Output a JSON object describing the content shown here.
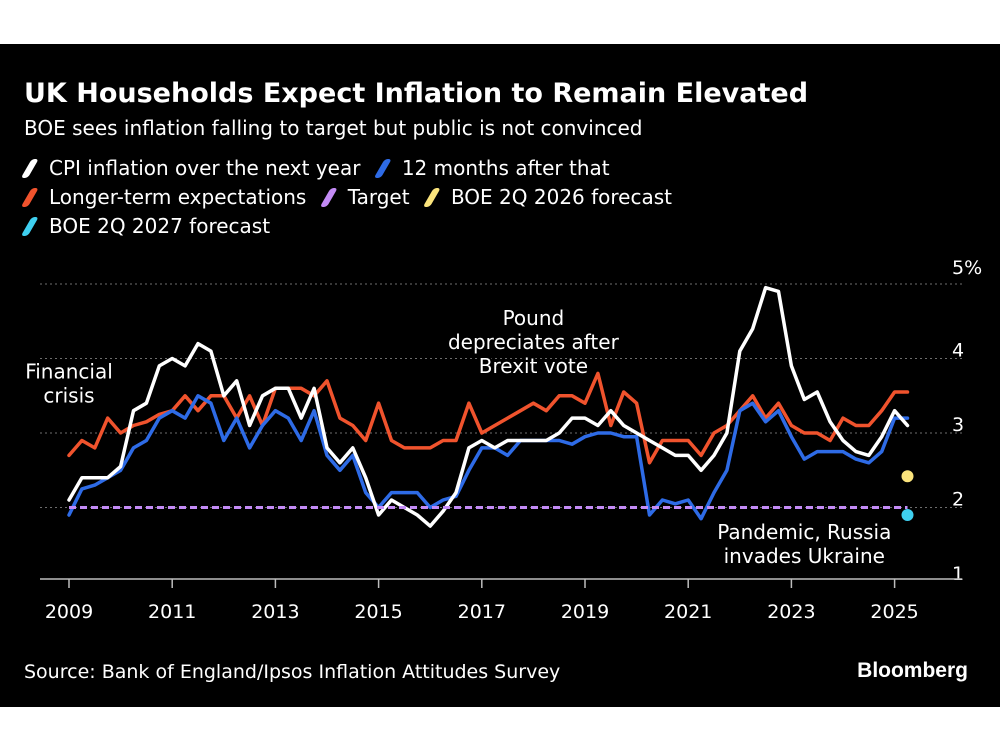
{
  "title": "UK Households Expect Inflation to Remain Elevated",
  "subtitle": "BOE sees inflation falling to target but public is not convinced",
  "legend": [
    [
      {
        "label": "CPI inflation over the next year",
        "color": "#ffffff"
      },
      {
        "label": "12 months after that",
        "color": "#2e6be6"
      }
    ],
    [
      {
        "label": "Longer-term expectations",
        "color": "#f0532d"
      },
      {
        "label": "Target",
        "color": "#c38bf5"
      },
      {
        "label": "BOE 2Q 2026 forecast",
        "color": "#fbe47c"
      }
    ],
    [
      {
        "label": "BOE 2Q 2027 forecast",
        "color": "#3fd0f0"
      }
    ]
  ],
  "source": "Source: Bank of England/Ipsos Inflation Attitudes Survey",
  "brand": "Bloomberg",
  "chart_data": {
    "type": "line",
    "x_range": [
      2008.8,
      2026.4
    ],
    "ylim": [
      1,
      5
    ],
    "y_ticks": [
      {
        "value": 5,
        "label": "5%"
      },
      {
        "value": 4,
        "label": "4"
      },
      {
        "value": 3,
        "label": "3"
      },
      {
        "value": 2,
        "label": "2"
      },
      {
        "value": 1,
        "label": "1"
      }
    ],
    "x_ticks": [
      2009,
      2011,
      2013,
      2015,
      2017,
      2019,
      2021,
      2023,
      2025
    ],
    "grid": "horizontal-dotted",
    "series": [
      {
        "name": "Longer-term expectations",
        "color": "#f0532d",
        "points": [
          [
            2009.0,
            2.7
          ],
          [
            2009.25,
            2.9
          ],
          [
            2009.5,
            2.8
          ],
          [
            2009.75,
            3.2
          ],
          [
            2010.0,
            3.0
          ],
          [
            2010.25,
            3.1
          ],
          [
            2010.5,
            3.15
          ],
          [
            2010.75,
            3.25
          ],
          [
            2011.0,
            3.3
          ],
          [
            2011.25,
            3.5
          ],
          [
            2011.5,
            3.3
          ],
          [
            2011.75,
            3.5
          ],
          [
            2012.0,
            3.5
          ],
          [
            2012.25,
            3.2
          ],
          [
            2012.5,
            3.5
          ],
          [
            2012.75,
            3.1
          ],
          [
            2013.0,
            3.6
          ],
          [
            2013.25,
            3.6
          ],
          [
            2013.5,
            3.6
          ],
          [
            2013.75,
            3.5
          ],
          [
            2014.0,
            3.7
          ],
          [
            2014.25,
            3.2
          ],
          [
            2014.5,
            3.1
          ],
          [
            2014.75,
            2.9
          ],
          [
            2015.0,
            3.4
          ],
          [
            2015.25,
            2.9
          ],
          [
            2015.5,
            2.8
          ],
          [
            2015.75,
            2.8
          ],
          [
            2016.0,
            2.8
          ],
          [
            2016.25,
            2.9
          ],
          [
            2016.5,
            2.9
          ],
          [
            2016.75,
            3.4
          ],
          [
            2017.0,
            3.0
          ],
          [
            2017.5,
            3.2
          ],
          [
            2017.75,
            3.3
          ],
          [
            2018.0,
            3.4
          ],
          [
            2018.25,
            3.3
          ],
          [
            2018.5,
            3.5
          ],
          [
            2018.75,
            3.5
          ],
          [
            2019.0,
            3.4
          ],
          [
            2019.25,
            3.8
          ],
          [
            2019.5,
            3.1
          ],
          [
            2019.75,
            3.55
          ],
          [
            2020.0,
            3.4
          ],
          [
            2020.25,
            2.6
          ],
          [
            2020.5,
            2.9
          ],
          [
            2020.75,
            2.9
          ],
          [
            2021.0,
            2.9
          ],
          [
            2021.25,
            2.7
          ],
          [
            2021.5,
            3.0
          ],
          [
            2021.75,
            3.1
          ],
          [
            2022.0,
            3.3
          ],
          [
            2022.25,
            3.5
          ],
          [
            2022.5,
            3.2
          ],
          [
            2022.75,
            3.4
          ],
          [
            2023.0,
            3.1
          ],
          [
            2023.25,
            3.0
          ],
          [
            2023.5,
            3.0
          ],
          [
            2023.75,
            2.9
          ],
          [
            2024.0,
            3.2
          ],
          [
            2024.25,
            3.1
          ],
          [
            2024.5,
            3.1
          ],
          [
            2024.75,
            3.3
          ],
          [
            2025.0,
            3.55
          ],
          [
            2025.25,
            3.55
          ]
        ]
      },
      {
        "name": "12 months after that",
        "color": "#2e6be6",
        "points": [
          [
            2009.0,
            1.9
          ],
          [
            2009.25,
            2.25
          ],
          [
            2009.5,
            2.3
          ],
          [
            2009.75,
            2.4
          ],
          [
            2010.0,
            2.5
          ],
          [
            2010.25,
            2.8
          ],
          [
            2010.5,
            2.9
          ],
          [
            2010.75,
            3.2
          ],
          [
            2011.0,
            3.3
          ],
          [
            2011.25,
            3.2
          ],
          [
            2011.5,
            3.5
          ],
          [
            2011.75,
            3.4
          ],
          [
            2012.0,
            2.9
          ],
          [
            2012.25,
            3.2
          ],
          [
            2012.5,
            2.8
          ],
          [
            2012.75,
            3.1
          ],
          [
            2013.0,
            3.3
          ],
          [
            2013.25,
            3.2
          ],
          [
            2013.5,
            2.9
          ],
          [
            2013.75,
            3.3
          ],
          [
            2014.0,
            2.7
          ],
          [
            2014.25,
            2.5
          ],
          [
            2014.5,
            2.7
          ],
          [
            2014.75,
            2.2
          ],
          [
            2015.0,
            2.0
          ],
          [
            2015.25,
            2.2
          ],
          [
            2015.5,
            2.2
          ],
          [
            2015.75,
            2.2
          ],
          [
            2016.0,
            2.0
          ],
          [
            2016.25,
            2.1
          ],
          [
            2016.5,
            2.15
          ],
          [
            2016.75,
            2.5
          ],
          [
            2017.0,
            2.8
          ],
          [
            2017.25,
            2.8
          ],
          [
            2017.5,
            2.7
          ],
          [
            2017.75,
            2.9
          ],
          [
            2018.0,
            2.9
          ],
          [
            2018.25,
            2.9
          ],
          [
            2018.5,
            2.9
          ],
          [
            2018.75,
            2.85
          ],
          [
            2019.0,
            2.95
          ],
          [
            2019.25,
            3.0
          ],
          [
            2019.5,
            3.0
          ],
          [
            2019.75,
            2.95
          ],
          [
            2020.0,
            2.95
          ],
          [
            2020.25,
            1.9
          ],
          [
            2020.5,
            2.1
          ],
          [
            2020.75,
            2.05
          ],
          [
            2021.0,
            2.1
          ],
          [
            2021.25,
            1.85
          ],
          [
            2021.5,
            2.2
          ],
          [
            2021.75,
            2.5
          ],
          [
            2022.0,
            3.3
          ],
          [
            2022.25,
            3.4
          ],
          [
            2022.5,
            3.15
          ],
          [
            2022.75,
            3.3
          ],
          [
            2023.0,
            2.95
          ],
          [
            2023.25,
            2.65
          ],
          [
            2023.5,
            2.75
          ],
          [
            2023.75,
            2.75
          ],
          [
            2024.0,
            2.75
          ],
          [
            2024.25,
            2.65
          ],
          [
            2024.5,
            2.6
          ],
          [
            2024.75,
            2.75
          ],
          [
            2025.0,
            3.2
          ],
          [
            2025.25,
            3.2
          ]
        ]
      },
      {
        "name": "CPI inflation over the next year",
        "color": "#ffffff",
        "points": [
          [
            2009.0,
            2.1
          ],
          [
            2009.25,
            2.4
          ],
          [
            2009.5,
            2.4
          ],
          [
            2009.75,
            2.4
          ],
          [
            2010.0,
            2.55
          ],
          [
            2010.25,
            3.3
          ],
          [
            2010.5,
            3.4
          ],
          [
            2010.75,
            3.9
          ],
          [
            2011.0,
            4.0
          ],
          [
            2011.25,
            3.9
          ],
          [
            2011.5,
            4.2
          ],
          [
            2011.75,
            4.1
          ],
          [
            2012.0,
            3.5
          ],
          [
            2012.25,
            3.7
          ],
          [
            2012.5,
            3.1
          ],
          [
            2012.75,
            3.5
          ],
          [
            2013.0,
            3.6
          ],
          [
            2013.25,
            3.6
          ],
          [
            2013.5,
            3.2
          ],
          [
            2013.75,
            3.6
          ],
          [
            2014.0,
            2.8
          ],
          [
            2014.25,
            2.6
          ],
          [
            2014.5,
            2.8
          ],
          [
            2014.75,
            2.4
          ],
          [
            2015.0,
            1.9
          ],
          [
            2015.25,
            2.1
          ],
          [
            2015.5,
            2.0
          ],
          [
            2015.75,
            1.9
          ],
          [
            2016.0,
            1.75
          ],
          [
            2016.25,
            1.95
          ],
          [
            2016.5,
            2.2
          ],
          [
            2016.75,
            2.8
          ],
          [
            2017.0,
            2.9
          ],
          [
            2017.25,
            2.8
          ],
          [
            2017.5,
            2.9
          ],
          [
            2017.75,
            2.9
          ],
          [
            2018.0,
            2.9
          ],
          [
            2018.25,
            2.9
          ],
          [
            2018.5,
            3.0
          ],
          [
            2018.75,
            3.2
          ],
          [
            2019.0,
            3.2
          ],
          [
            2019.25,
            3.1
          ],
          [
            2019.5,
            3.3
          ],
          [
            2019.75,
            3.1
          ],
          [
            2020.0,
            3.0
          ],
          [
            2020.25,
            2.9
          ],
          [
            2020.5,
            2.8
          ],
          [
            2020.75,
            2.7
          ],
          [
            2021.0,
            2.7
          ],
          [
            2021.25,
            2.5
          ],
          [
            2021.5,
            2.7
          ],
          [
            2021.75,
            3.0
          ],
          [
            2022.0,
            4.1
          ],
          [
            2022.25,
            4.4
          ],
          [
            2022.5,
            4.95
          ],
          [
            2022.75,
            4.9
          ],
          [
            2023.0,
            3.9
          ],
          [
            2023.25,
            3.45
          ],
          [
            2023.5,
            3.55
          ],
          [
            2023.75,
            3.15
          ],
          [
            2024.0,
            2.9
          ],
          [
            2024.25,
            2.75
          ],
          [
            2024.5,
            2.7
          ],
          [
            2024.75,
            2.95
          ],
          [
            2025.0,
            3.3
          ],
          [
            2025.25,
            3.1
          ]
        ]
      },
      {
        "name": "Target",
        "color": "#c38bf5",
        "value": 2.0,
        "x_range": [
          2009.0,
          2025.25
        ]
      }
    ],
    "forecast_points": [
      {
        "name": "BOE 2Q 2026 forecast",
        "color": "#fbe47c",
        "x": 2025.25,
        "y": 2.42
      },
      {
        "name": "BOE 2Q 2027 forecast",
        "color": "#3fd0f0",
        "x": 2025.25,
        "y": 1.9
      }
    ],
    "annotations": [
      {
        "lines": [
          "Financial",
          "crisis"
        ],
        "x": 2009.0,
        "y": 3.73,
        "anchor": "middle"
      },
      {
        "lines": [
          "Pound",
          "depreciates after",
          "Brexit vote"
        ],
        "x": 2018.0,
        "y": 4.45,
        "anchor": "middle"
      },
      {
        "lines": [
          "Pandemic, Russia",
          "invades Ukraine"
        ],
        "x": 2023.25,
        "y": 1.58,
        "anchor": "middle"
      }
    ]
  }
}
